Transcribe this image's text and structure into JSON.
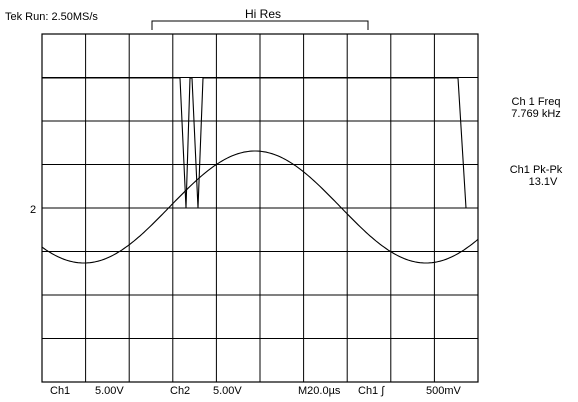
{
  "header": {
    "status": "Tek Run: 2.50MS/s",
    "acquisition_mode": "Hi Res"
  },
  "measurements": [
    {
      "name": "Ch 1 Freq",
      "value": "7.769 kHz"
    },
    {
      "name": "Ch1 Pk-Pk",
      "value": "13.1V"
    }
  ],
  "channel_marker": "2",
  "footer": {
    "ch1_label": "Ch1",
    "ch1_scale": "5.00V",
    "ch2_label": "Ch2",
    "ch2_scale": "5.00V",
    "timebase": "M20.0µs",
    "trigger_source": "Ch1 ∫",
    "trigger_level": "500mV"
  },
  "display": {
    "graticule": {
      "divisions_x": 10,
      "divisions_y": 8
    },
    "trace_color": "#000000",
    "grid_color": "#000000"
  }
}
